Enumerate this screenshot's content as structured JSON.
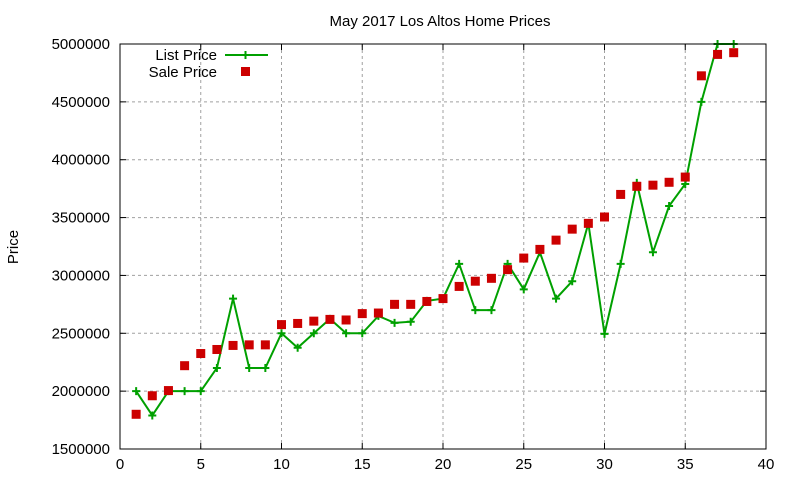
{
  "chart_data": {
    "type": "line",
    "title": "May 2017 Los Altos Home Prices",
    "xlabel": "",
    "ylabel": "Price",
    "xlim": [
      0,
      40
    ],
    "ylim": [
      1500000,
      5000000
    ],
    "x_ticks": [
      "0",
      "5",
      "10",
      "15",
      "20",
      "25",
      "30",
      "35",
      "40"
    ],
    "y_ticks": [
      "1500000",
      "2000000",
      "2500000",
      "3000000",
      "3500000",
      "4000000",
      "4500000",
      "5000000"
    ],
    "grid": true,
    "legend_position": "top-left",
    "x": [
      1,
      2,
      3,
      4,
      5,
      6,
      7,
      8,
      9,
      10,
      11,
      12,
      13,
      14,
      15,
      16,
      17,
      18,
      19,
      20,
      21,
      22,
      23,
      24,
      25,
      26,
      27,
      28,
      29,
      30,
      31,
      32,
      33,
      34,
      35,
      36,
      37,
      38
    ],
    "series": [
      {
        "name": "List Price",
        "style": "linespoints",
        "color": "#00a000",
        "values": [
          2000000,
          1790000,
          2000000,
          2000000,
          2000000,
          2200000,
          2800000,
          2200000,
          2200000,
          2500000,
          2375000,
          2500000,
          2625000,
          2500000,
          2500000,
          2650000,
          2590000,
          2600000,
          2780000,
          2800000,
          3100000,
          2700000,
          2700000,
          3100000,
          2880000,
          3200000,
          2800000,
          2950000,
          3450000,
          2495000,
          3100000,
          3800000,
          3200000,
          3600000,
          3790000,
          4500000,
          5000000,
          5000000
        ]
      },
      {
        "name": "Sale Price",
        "style": "points",
        "color": "#cc0000",
        "values": [
          1800000,
          1960000,
          2005000,
          2220000,
          2325000,
          2360000,
          2395000,
          2400000,
          2400000,
          2575000,
          2585000,
          2605000,
          2620000,
          2615000,
          2670000,
          2675000,
          2750000,
          2750000,
          2775000,
          2800000,
          2905000,
          2950000,
          2975000,
          3050000,
          3150000,
          3225000,
          3305000,
          3400000,
          3450000,
          3505000,
          3700000,
          3770000,
          3780000,
          3805000,
          3850000,
          4725000,
          4910000,
          4925000
        ]
      }
    ]
  }
}
